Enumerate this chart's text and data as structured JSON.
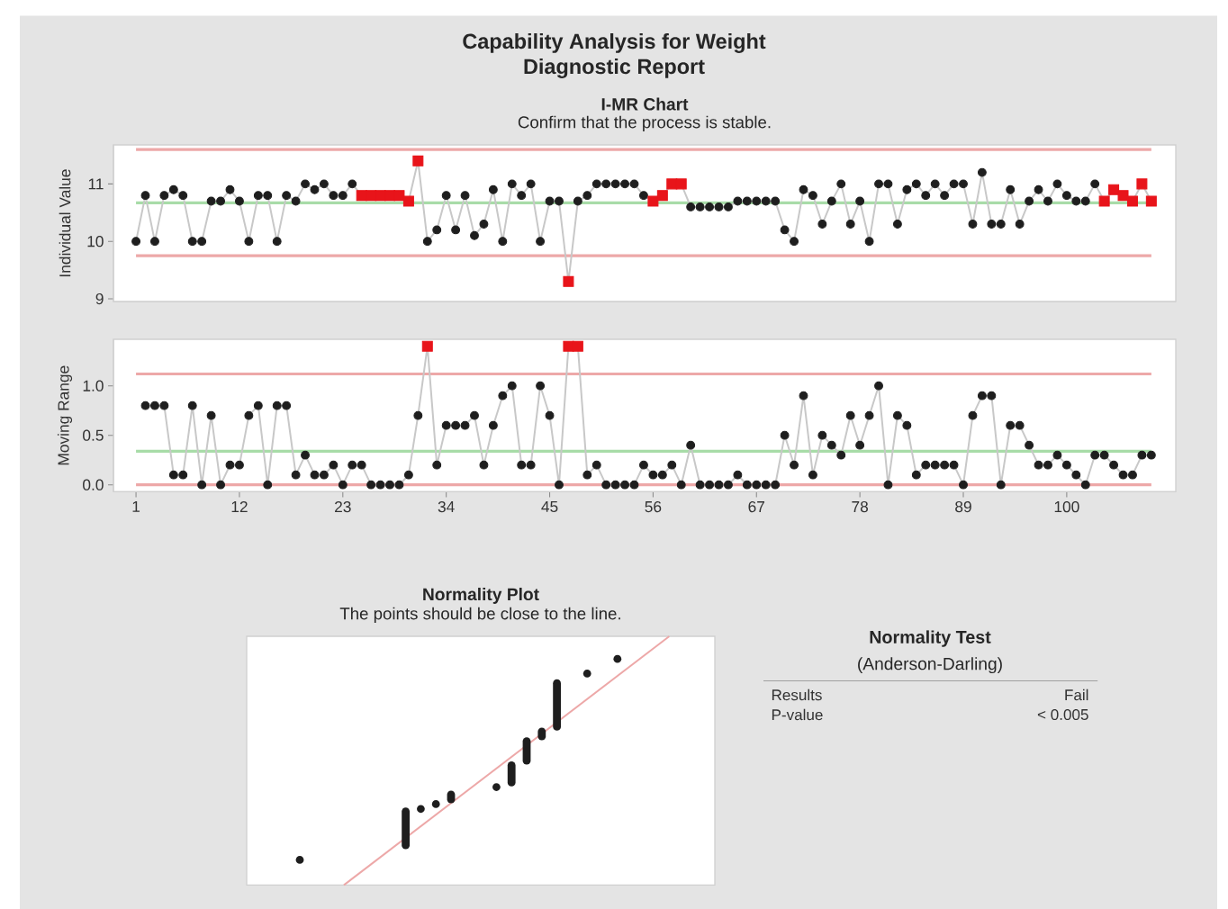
{
  "chart_data": [
    {
      "type": "other",
      "title": "Capability Analysis for Weight",
      "subtitle": "Diagnostic Report"
    },
    {
      "type": "line",
      "title": "I-MR Chart",
      "subtitle": "Confirm that the process is stable.",
      "ylabel": "Individual Value",
      "x": [
        1,
        2,
        3,
        4,
        5,
        6,
        7,
        8,
        9,
        10,
        11,
        12,
        13,
        14,
        15,
        16,
        17,
        18,
        19,
        20,
        21,
        22,
        23,
        24,
        25,
        26,
        27,
        28,
        29,
        30,
        31,
        32,
        33,
        34,
        35,
        36,
        37,
        38,
        39,
        40,
        41,
        42,
        43,
        44,
        45,
        46,
        47,
        48,
        49,
        50,
        51,
        52,
        53,
        54,
        55,
        56,
        57,
        58,
        59,
        60,
        61,
        62,
        63,
        64,
        65,
        66,
        67,
        68,
        69,
        70,
        71,
        72,
        73,
        74,
        75,
        76,
        77,
        78,
        79,
        80,
        81,
        82,
        83,
        84,
        85,
        86,
        87,
        88,
        89,
        90,
        91,
        92,
        93,
        94,
        95,
        96,
        97,
        98,
        99,
        100,
        101,
        102,
        103,
        104,
        105,
        106,
        107,
        108,
        109
      ],
      "xlim": [
        -1.4,
        111.6
      ],
      "ylim": [
        8.95,
        11.68
      ],
      "yticks": [
        9,
        10,
        11
      ],
      "tick_labels": "y",
      "ref_lines": [
        {
          "axis": "y",
          "value": 11.6,
          "color": "#eda8a8"
        },
        {
          "axis": "y",
          "value": 10.67,
          "color": "#a8dca8"
        },
        {
          "axis": "y",
          "value": 9.75,
          "color": "#eda8a8"
        }
      ],
      "series": [
        {
          "type": "line",
          "color": "#c8c8c8",
          "marker": "none",
          "values": [
            10.0,
            10.8,
            10.0,
            10.8,
            10.9,
            10.8,
            10.0,
            10.0,
            10.7,
            10.7,
            10.9,
            10.7,
            10.0,
            10.8,
            10.8,
            10.0,
            10.8,
            10.7,
            11.0,
            10.9,
            11.0,
            10.8,
            10.8,
            11.0,
            10.8,
            10.8,
            10.8,
            10.8,
            10.8,
            10.7,
            11.4,
            10.0,
            10.2,
            10.8,
            10.2,
            10.8,
            10.1,
            10.3,
            10.9,
            10.0,
            11.0,
            10.8,
            11.0,
            10.0,
            10.7,
            10.7,
            9.3,
            10.7,
            10.8,
            11.0,
            11.0,
            11.0,
            11.0,
            11.0,
            10.8,
            10.7,
            10.8,
            11.0,
            11.0,
            10.6,
            10.6,
            10.6,
            10.6,
            10.6,
            10.7,
            10.7,
            10.7,
            10.7,
            10.7,
            10.2,
            10.0,
            10.9,
            10.8,
            10.3,
            10.7,
            11.0,
            10.3,
            10.7,
            10.0,
            11.0,
            11.0,
            10.3,
            10.9,
            11.0,
            10.8,
            11.0,
            10.8,
            11.0,
            11.0,
            10.3,
            11.2,
            10.3,
            10.3,
            10.9,
            10.3,
            10.7,
            10.9,
            10.7,
            11.0,
            10.8,
            10.7,
            10.7,
            11.0,
            10.7,
            10.9,
            10.8,
            10.7,
            11.0,
            10.7
          ]
        },
        {
          "type": "scatter",
          "color": "#1e1e1e",
          "marker": "circle",
          "values": [
            10.0,
            10.8,
            10.0,
            10.8,
            10.9,
            10.8,
            10.0,
            10.0,
            10.7,
            10.7,
            10.9,
            10.7,
            10.0,
            10.8,
            10.8,
            10.0,
            10.8,
            10.7,
            11.0,
            10.9,
            11.0,
            10.8,
            10.8,
            11.0,
            null,
            null,
            null,
            null,
            null,
            null,
            null,
            10.0,
            10.2,
            10.8,
            10.2,
            10.8,
            10.1,
            10.3,
            10.9,
            10.0,
            11.0,
            10.8,
            11.0,
            10.0,
            10.7,
            10.7,
            null,
            10.7,
            10.8,
            11.0,
            11.0,
            11.0,
            11.0,
            11.0,
            10.8,
            null,
            null,
            null,
            null,
            10.6,
            10.6,
            10.6,
            10.6,
            10.6,
            10.7,
            10.7,
            10.7,
            10.7,
            10.7,
            10.2,
            10.0,
            10.9,
            10.8,
            10.3,
            10.7,
            11.0,
            10.3,
            10.7,
            10.0,
            11.0,
            11.0,
            10.3,
            10.9,
            11.0,
            10.8,
            11.0,
            10.8,
            11.0,
            11.0,
            10.3,
            11.2,
            10.3,
            10.3,
            10.9,
            10.3,
            10.7,
            10.9,
            10.7,
            11.0,
            10.8,
            10.7,
            10.7,
            11.0,
            null,
            null,
            null,
            null,
            null,
            null
          ]
        },
        {
          "type": "scatter",
          "color": "#e8141a",
          "marker": "square",
          "values": [
            null,
            null,
            null,
            null,
            null,
            null,
            null,
            null,
            null,
            null,
            null,
            null,
            null,
            null,
            null,
            null,
            null,
            null,
            null,
            null,
            null,
            null,
            null,
            null,
            10.8,
            10.8,
            10.8,
            10.8,
            10.8,
            10.7,
            11.4,
            null,
            null,
            null,
            null,
            null,
            null,
            null,
            null,
            null,
            null,
            null,
            null,
            null,
            null,
            null,
            9.3,
            null,
            null,
            null,
            null,
            null,
            null,
            null,
            null,
            10.7,
            10.8,
            11.0,
            11.0,
            null,
            null,
            null,
            null,
            null,
            null,
            null,
            null,
            null,
            null,
            null,
            null,
            null,
            null,
            null,
            null,
            null,
            null,
            null,
            null,
            null,
            null,
            null,
            null,
            null,
            null,
            null,
            null,
            null,
            null,
            null,
            null,
            null,
            null,
            null,
            null,
            null,
            null,
            null,
            null,
            null,
            null,
            null,
            null,
            10.7,
            10.9,
            10.8,
            10.7,
            11.0,
            10.7
          ]
        }
      ]
    },
    {
      "type": "line",
      "ylabel": "Moving Range",
      "x": [
        2,
        3,
        4,
        5,
        6,
        7,
        8,
        9,
        10,
        11,
        12,
        13,
        14,
        15,
        16,
        17,
        18,
        19,
        20,
        21,
        22,
        23,
        24,
        25,
        26,
        27,
        28,
        29,
        30,
        31,
        32,
        33,
        34,
        35,
        36,
        37,
        38,
        39,
        40,
        41,
        42,
        43,
        44,
        45,
        46,
        47,
        48,
        49,
        50,
        51,
        52,
        53,
        54,
        55,
        56,
        57,
        58,
        59,
        60,
        61,
        62,
        63,
        64,
        65,
        66,
        67,
        68,
        69,
        70,
        71,
        72,
        73,
        74,
        75,
        76,
        77,
        78,
        79,
        80,
        81,
        82,
        83,
        84,
        85,
        86,
        87,
        88,
        89,
        90,
        91,
        92,
        93,
        94,
        95,
        96,
        97,
        98,
        99,
        100,
        101,
        102,
        103,
        104,
        105,
        106,
        107,
        108,
        109
      ],
      "xlim": [
        -1.4,
        111.6
      ],
      "ylim": [
        -0.07,
        1.47
      ],
      "xticks": [
        1,
        12,
        23,
        34,
        45,
        56,
        67,
        78,
        89,
        100
      ],
      "yticks": [
        {
          "value": 0,
          "label": "0.0"
        },
        {
          "value": 0.5,
          "label": "0.5"
        },
        {
          "value": 1,
          "label": "1.0"
        }
      ],
      "ref_lines": [
        {
          "axis": "y",
          "value": 1.12,
          "color": "#eda8a8"
        },
        {
          "axis": "y",
          "value": 0.34,
          "color": "#a8dca8"
        },
        {
          "axis": "y",
          "value": 0,
          "color": "#eda8a8"
        }
      ],
      "series": [
        {
          "type": "line",
          "color": "#c8c8c8",
          "marker": "none",
          "values": [
            0.8,
            0.8,
            0.8,
            0.1,
            0.1,
            0.8,
            0,
            0.7,
            0,
            0.2,
            0.2,
            0.7,
            0.8,
            0,
            0.8,
            0.8,
            0.1,
            0.3,
            0.1,
            0.1,
            0.2,
            0,
            0.2,
            0.2,
            0,
            0,
            0,
            0,
            0.1,
            0.7,
            1.4,
            0.2,
            0.6,
            0.6,
            0.6,
            0.7,
            0.2,
            0.6,
            0.9,
            1.0,
            0.2,
            0.2,
            1.0,
            0.7,
            0,
            1.4,
            1.4,
            0.1,
            0.2,
            0,
            0,
            0,
            0,
            0.2,
            0.1,
            0.1,
            0.2,
            0,
            0.4,
            0,
            0,
            0,
            0,
            0.1,
            0,
            0,
            0,
            0,
            0.5,
            0.2,
            0.9,
            0.1,
            0.5,
            0.4,
            0.3,
            0.7,
            0.4,
            0.7,
            1.0,
            0,
            0.7,
            0.6,
            0.1,
            0.2,
            0.2,
            0.2,
            0.2,
            0,
            0.7,
            0.9,
            0.9,
            0,
            0.6,
            0.6,
            0.4,
            0.2,
            0.2,
            0.3,
            0.2,
            0.1,
            0,
            0.3,
            0.3,
            0.2,
            0.1,
            0.1,
            0.3,
            0.3
          ]
        },
        {
          "type": "scatter",
          "color": "#1e1e1e",
          "marker": "circle",
          "values": [
            0.8,
            0.8,
            0.8,
            0.1,
            0.1,
            0.8,
            0,
            0.7,
            0,
            0.2,
            0.2,
            0.7,
            0.8,
            0,
            0.8,
            0.8,
            0.1,
            0.3,
            0.1,
            0.1,
            0.2,
            0,
            0.2,
            0.2,
            0,
            0,
            0,
            0,
            0.1,
            0.7,
            null,
            0.2,
            0.6,
            0.6,
            0.6,
            0.7,
            0.2,
            0.6,
            0.9,
            1.0,
            0.2,
            0.2,
            1.0,
            0.7,
            0,
            null,
            null,
            0.1,
            0.2,
            0,
            0,
            0,
            0,
            0.2,
            0.1,
            0.1,
            0.2,
            0,
            0.4,
            0,
            0,
            0,
            0,
            0.1,
            0,
            0,
            0,
            0,
            0.5,
            0.2,
            0.9,
            0.1,
            0.5,
            0.4,
            0.3,
            0.7,
            0.4,
            0.7,
            1.0,
            0,
            0.7,
            0.6,
            0.1,
            0.2,
            0.2,
            0.2,
            0.2,
            0,
            0.7,
            0.9,
            0.9,
            0,
            0.6,
            0.6,
            0.4,
            0.2,
            0.2,
            0.3,
            0.2,
            0.1,
            0,
            0.3,
            0.3,
            0.2,
            0.1,
            0.1,
            0.3,
            0.3
          ]
        },
        {
          "type": "scatter",
          "color": "#e8141a",
          "marker": "square",
          "values": [
            null,
            null,
            null,
            null,
            null,
            null,
            null,
            null,
            null,
            null,
            null,
            null,
            null,
            null,
            null,
            null,
            null,
            null,
            null,
            null,
            null,
            null,
            null,
            null,
            null,
            null,
            null,
            null,
            null,
            null,
            1.4,
            null,
            null,
            null,
            null,
            null,
            null,
            null,
            null,
            null,
            null,
            null,
            null,
            null,
            null,
            1.4,
            1.4,
            null,
            null,
            null,
            null,
            null,
            null,
            null,
            null,
            null,
            null,
            null,
            null,
            null,
            null,
            null,
            null,
            null,
            null,
            null,
            null,
            null,
            null,
            null,
            null,
            null,
            null,
            null,
            null,
            null,
            null,
            null,
            null,
            null,
            null,
            null,
            null,
            null,
            null,
            null,
            null,
            null,
            null,
            null,
            null,
            null,
            null,
            null,
            null,
            null,
            null,
            null,
            null,
            null,
            null,
            null,
            null,
            null,
            null,
            null,
            null,
            null
          ]
        }
      ]
    },
    {
      "type": "other",
      "title": "Normality Plot",
      "subtitle": "The points should be close to the line."
    },
    {
      "type": "other",
      "title": "Normality Test",
      "subtitle": "(Anderson-Darling)",
      "annotations": [
        "Results",
        "Fail",
        "P-value",
        "< 0.005"
      ]
    }
  ]
}
